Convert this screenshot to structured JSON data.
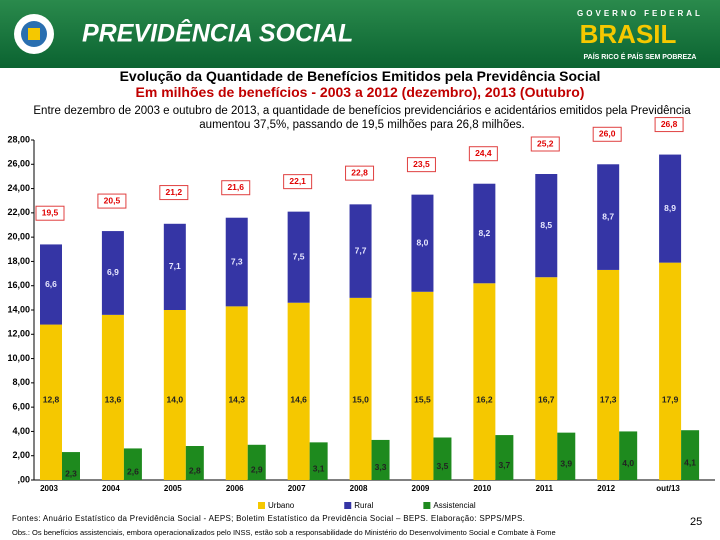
{
  "header": {
    "brand": "PREVIDÊNCIA SOCIAL",
    "gov": "GOVERNO FEDERAL",
    "country": "BRASIL",
    "slogan": "PAÍS RICO É PAÍS SEM POBREZA"
  },
  "chart_data": {
    "type": "bar",
    "title": "Evolução da Quantidade de Benefícios Emitidos pela Previdência Social",
    "subtitle": "Em milhões de benefícios - 2003 a 2012 (dezembro), 2013 (Outubro)",
    "description": "Entre dezembro de 2003 e outubro de 2013, a quantidade de benefícios previdenciários e acidentários emitidos pela Previdência aumentou 37,5%, passando de 19,5 milhões para 26,8 milhões.",
    "categories": [
      "2003",
      "2004",
      "2005",
      "2006",
      "2007",
      "2008",
      "2009",
      "2010",
      "2011",
      "2012",
      "out/13"
    ],
    "series": [
      {
        "name": "Urbano",
        "color": "#f5c800",
        "values": [
          12.8,
          13.6,
          14.0,
          14.3,
          14.6,
          15.0,
          15.5,
          16.2,
          16.7,
          17.3,
          17.9
        ],
        "value_labels": [
          "12,8",
          "13,6",
          "14,0",
          "14,3",
          "14,6",
          "15,0",
          "15,5",
          "16,2",
          "16,7",
          "17,3",
          "17,9"
        ]
      },
      {
        "name": "Rural",
        "color": "#3535a5",
        "values": [
          6.6,
          6.9,
          7.1,
          7.3,
          7.5,
          7.7,
          8.0,
          8.2,
          8.5,
          8.7,
          8.9
        ],
        "value_labels": [
          "6,6",
          "6,9",
          "7,1",
          "7,3",
          "7,5",
          "7,7",
          "8,0",
          "8,2",
          "8,5",
          "8,7",
          "8,9"
        ]
      },
      {
        "name": "Assistencial",
        "color": "#1e8a1e",
        "values": [
          2.3,
          2.6,
          2.8,
          2.9,
          3.1,
          3.3,
          3.5,
          3.7,
          3.9,
          4.0,
          4.1
        ],
        "value_labels": [
          "2,3",
          "2,6",
          "2,8",
          "2,9",
          "3,1",
          "3,3",
          "3,5",
          "3,7",
          "3,9",
          "4,0",
          "4,1"
        ]
      }
    ],
    "totals": {
      "values": [
        19.5,
        20.5,
        21.2,
        21.6,
        22.1,
        22.8,
        23.5,
        24.4,
        25.2,
        26.0,
        26.8
      ],
      "value_labels": [
        "19,5",
        "20,5",
        "21,2",
        "21,6",
        "22,1",
        "22,8",
        "23,5",
        "24,4",
        "25,2",
        "26,0",
        "26,8"
      ]
    },
    "ylim": [
      0,
      28
    ],
    "yticks": [
      {
        "value": 0,
        "label": ",00"
      },
      {
        "value": 2,
        "label": "2,00"
      },
      {
        "value": 4,
        "label": "4,00"
      },
      {
        "value": 6,
        "label": "6,00"
      },
      {
        "value": 8,
        "label": "8,00"
      },
      {
        "value": 10,
        "label": "10,00"
      },
      {
        "value": 12,
        "label": "12,00"
      },
      {
        "value": 14,
        "label": "14,00"
      },
      {
        "value": 16,
        "label": "16,00"
      },
      {
        "value": 18,
        "label": "18,00"
      },
      {
        "value": 20,
        "label": "20,00"
      },
      {
        "value": 22,
        "label": "22,00"
      },
      {
        "value": 24,
        "label": "24,00"
      },
      {
        "value": 26,
        "label": "26,00"
      },
      {
        "value": 28,
        "label": "28,00"
      }
    ],
    "grid": false,
    "legend": "bottom"
  },
  "footer": {
    "sources": "Fontes: Anuário Estatístico da Previdência Social - AEPS; Boletim Estatístico da Previdência Social – BEPS. Elaboração: SPPS/MPS.",
    "note": "Obs.: Os benefícios assistenciais, embora operacionalizados pelo INSS, estão sob a responsabilidade do Ministério do Desenvolvimento Social e Combate à Fome",
    "page": "25"
  }
}
